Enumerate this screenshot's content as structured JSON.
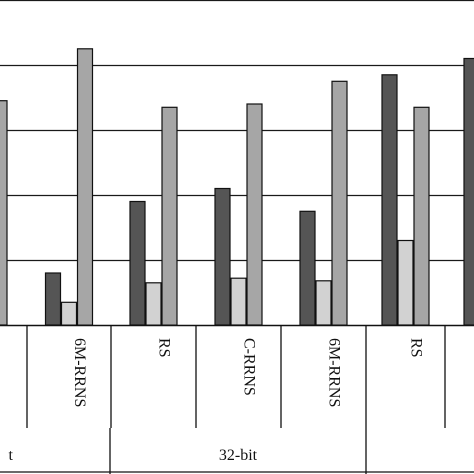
{
  "chart_data": {
    "type": "bar",
    "title": "",
    "xlabel": "",
    "ylabel": "",
    "grid": true,
    "legend": "none",
    "colors": [
      "#555555",
      "#d2d2d2",
      "#a6a6a6"
    ],
    "categories": [
      "",
      "6M-RRNS",
      "RS",
      "C-RRNS",
      "6M-RRNS",
      "RS",
      ""
    ],
    "groups": [
      "t",
      "32-bit"
    ],
    "series": [
      {
        "values": [
          null,
          0.8,
          1.9,
          2.1,
          1.75,
          3.85,
          4.1
        ]
      },
      {
        "values": [
          null,
          0.35,
          0.65,
          0.72,
          0.68,
          1.3,
          null
        ]
      },
      {
        "values": [
          3.45,
          4.25,
          3.35,
          3.4,
          3.75,
          3.35,
          null
        ]
      }
    ],
    "ylim": [
      0,
      5
    ]
  }
}
